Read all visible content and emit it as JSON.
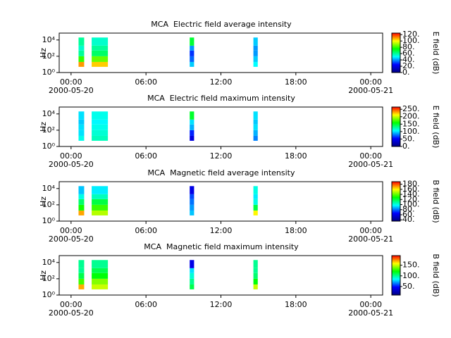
{
  "chart_data": [
    {
      "type": "heatmap",
      "title": "MCA  Electric field average intensity",
      "ylabel": "Hz",
      "colorbar_label": "E field (dB)",
      "yscale": "log",
      "ylim": [
        1,
        70000
      ],
      "yticks": [
        {
          "value": 1,
          "label": "10⁰"
        },
        {
          "value": 100,
          "label": "10²"
        },
        {
          "value": 10000,
          "label": "10⁴"
        }
      ],
      "xlim": [
        -0.95,
        24.95
      ],
      "xticks": [
        {
          "value": 0,
          "label": "00:00"
        },
        {
          "value": 6,
          "label": "06:00"
        },
        {
          "value": 12,
          "label": "12:00"
        },
        {
          "value": 18,
          "label": "18:00"
        },
        {
          "value": 24,
          "label": "00:00"
        }
      ],
      "date_labels": [
        {
          "value": 0,
          "label": "2000-05-20"
        },
        {
          "value": 24,
          "label": "2000-05-21"
        }
      ],
      "colormap": [
        "#000080",
        "#0000ff",
        "#00ffff",
        "#00ff00",
        "#ffff00",
        "#ff0000"
      ],
      "clim": [
        0,
        125
      ],
      "cticks": [
        {
          "value": 0,
          "label": "0."
        },
        {
          "value": 20,
          "label": "20."
        },
        {
          "value": 40,
          "label": "40."
        },
        {
          "value": 60,
          "label": "60."
        },
        {
          "value": 80,
          "label": "80."
        },
        {
          "value": 100,
          "label": "100."
        },
        {
          "value": 120,
          "label": "120."
        }
      ],
      "freq_bins": [
        5,
        20,
        100,
        500,
        2000,
        20000
      ],
      "segments": [
        {
          "start": 0.6,
          "end": 1.05,
          "values": [
            110,
            80,
            60,
            55,
            60
          ]
        },
        {
          "start": 1.65,
          "end": 2.95,
          "values": [
            105,
            85,
            65,
            60,
            55
          ]
        },
        {
          "start": 9.5,
          "end": 9.85,
          "values": [
            45,
            35,
            30,
            40,
            70
          ]
        },
        {
          "start": 14.6,
          "end": 14.95,
          "values": [
            50,
            45,
            40,
            40,
            45
          ]
        }
      ]
    },
    {
      "type": "heatmap",
      "title": "MCA  Electric field maximum intensity",
      "ylabel": "Hz",
      "colorbar_label": "E field (dB)",
      "yscale": "log",
      "ylim": [
        1,
        70000
      ],
      "yticks": [
        {
          "value": 1,
          "label": "10⁰"
        },
        {
          "value": 100,
          "label": "10²"
        },
        {
          "value": 10000,
          "label": "10⁴"
        }
      ],
      "xlim": [
        -0.95,
        24.95
      ],
      "xticks": [
        {
          "value": 0,
          "label": "00:00"
        },
        {
          "value": 6,
          "label": "06:00"
        },
        {
          "value": 12,
          "label": "12:00"
        },
        {
          "value": 18,
          "label": "18:00"
        },
        {
          "value": 24,
          "label": "00:00"
        }
      ],
      "date_labels": [
        {
          "value": 0,
          "label": "2000-05-20"
        },
        {
          "value": 24,
          "label": "2000-05-21"
        }
      ],
      "colormap": [
        "#000080",
        "#0000ff",
        "#00ffff",
        "#00ff00",
        "#ffff00",
        "#ff0000"
      ],
      "clim": [
        0,
        265
      ],
      "cticks": [
        {
          "value": 0,
          "label": "0."
        },
        {
          "value": 50,
          "label": "50."
        },
        {
          "value": 100,
          "label": "100."
        },
        {
          "value": 150,
          "label": "150."
        },
        {
          "value": 200,
          "label": "200."
        },
        {
          "value": 250,
          "label": "250."
        }
      ],
      "freq_bins": [
        5,
        20,
        100,
        500,
        2000,
        20000
      ],
      "segments": [
        {
          "start": 0.6,
          "end": 1.05,
          "values": [
            110,
            100,
            100,
            95,
            100
          ]
        },
        {
          "start": 1.65,
          "end": 2.95,
          "values": [
            120,
            115,
            110,
            105,
            110
          ]
        },
        {
          "start": 9.5,
          "end": 9.85,
          "values": [
            40,
            60,
            90,
            100,
            150
          ]
        },
        {
          "start": 14.6,
          "end": 14.95,
          "values": [
            80,
            90,
            100,
            95,
            100
          ]
        }
      ]
    },
    {
      "type": "heatmap",
      "title": "MCA  Magnetic field average intensity",
      "ylabel": "Hz",
      "colorbar_label": "B field (dB)",
      "yscale": "log",
      "ylim": [
        1,
        70000
      ],
      "yticks": [
        {
          "value": 1,
          "label": "10⁰"
        },
        {
          "value": 100,
          "label": "10²"
        },
        {
          "value": 10000,
          "label": "10⁴"
        }
      ],
      "xlim": [
        -0.95,
        24.95
      ],
      "xticks": [
        {
          "value": 0,
          "label": "00:00"
        },
        {
          "value": 6,
          "label": "06:00"
        },
        {
          "value": 12,
          "label": "12:00"
        },
        {
          "value": 18,
          "label": "18:00"
        },
        {
          "value": 24,
          "label": "00:00"
        }
      ],
      "date_labels": [
        {
          "value": 0,
          "label": "2000-05-20"
        },
        {
          "value": 24,
          "label": "2000-05-21"
        }
      ],
      "colormap": [
        "#000080",
        "#0000ff",
        "#00ffff",
        "#00ff00",
        "#ffff00",
        "#ff0000"
      ],
      "clim": [
        35,
        190
      ],
      "cticks": [
        {
          "value": 40,
          "label": "40."
        },
        {
          "value": 60,
          "label": "60."
        },
        {
          "value": 80,
          "label": "80."
        },
        {
          "value": 100,
          "label": "100."
        },
        {
          "value": 120,
          "label": "120."
        },
        {
          "value": 140,
          "label": "140."
        },
        {
          "value": 160,
          "label": "160."
        },
        {
          "value": 180,
          "label": "180."
        }
      ],
      "freq_bins": [
        5,
        20,
        100,
        500,
        2000,
        20000
      ],
      "segments": [
        {
          "start": 0.6,
          "end": 1.05,
          "values": [
            170,
            130,
            115,
            100,
            90
          ]
        },
        {
          "start": 1.65,
          "end": 2.95,
          "values": [
            150,
            135,
            120,
            105,
            95
          ]
        },
        {
          "start": 9.5,
          "end": 9.85,
          "values": [
            90,
            85,
            80,
            75,
            60
          ]
        },
        {
          "start": 14.6,
          "end": 14.95,
          "values": [
            160,
            120,
            100,
            95,
            100
          ]
        }
      ]
    },
    {
      "type": "heatmap",
      "title": "MCA  Magnetic field maximum intensity",
      "ylabel": "Hz",
      "colorbar_label": "B field (dB)",
      "yscale": "log",
      "ylim": [
        1,
        70000
      ],
      "yticks": [
        {
          "value": 1,
          "label": "10⁰"
        },
        {
          "value": 100,
          "label": "10²"
        },
        {
          "value": 10000,
          "label": "10⁴"
        }
      ],
      "xlim": [
        -0.95,
        24.95
      ],
      "xticks": [
        {
          "value": 0,
          "label": "00:00"
        },
        {
          "value": 6,
          "label": "06:00"
        },
        {
          "value": 12,
          "label": "12:00"
        },
        {
          "value": 18,
          "label": "18:00"
        },
        {
          "value": 24,
          "label": "00:00"
        }
      ],
      "date_labels": [
        {
          "value": 0,
          "label": "2000-05-20"
        },
        {
          "value": 24,
          "label": "2000-05-21"
        }
      ],
      "colormap": [
        "#000080",
        "#0000ff",
        "#00ffff",
        "#00ff00",
        "#ffff00",
        "#ff0000"
      ],
      "clim": [
        10,
        195
      ],
      "cticks": [
        {
          "value": 50,
          "label": "50."
        },
        {
          "value": 100,
          "label": "100."
        },
        {
          "value": 150,
          "label": "150."
        }
      ],
      "freq_bins": [
        5,
        20,
        100,
        500,
        2000,
        20000
      ],
      "segments": [
        {
          "start": 0.6,
          "end": 1.05,
          "values": [
            170,
            130,
            110,
            100,
            100
          ]
        },
        {
          "start": 1.65,
          "end": 2.95,
          "values": [
            150,
            140,
            120,
            110,
            100
          ]
        },
        {
          "start": 9.5,
          "end": 9.85,
          "values": [
            110,
            100,
            90,
            80,
            40
          ]
        },
        {
          "start": 14.6,
          "end": 14.95,
          "values": [
            150,
            120,
            105,
            100,
            100
          ]
        }
      ]
    }
  ]
}
